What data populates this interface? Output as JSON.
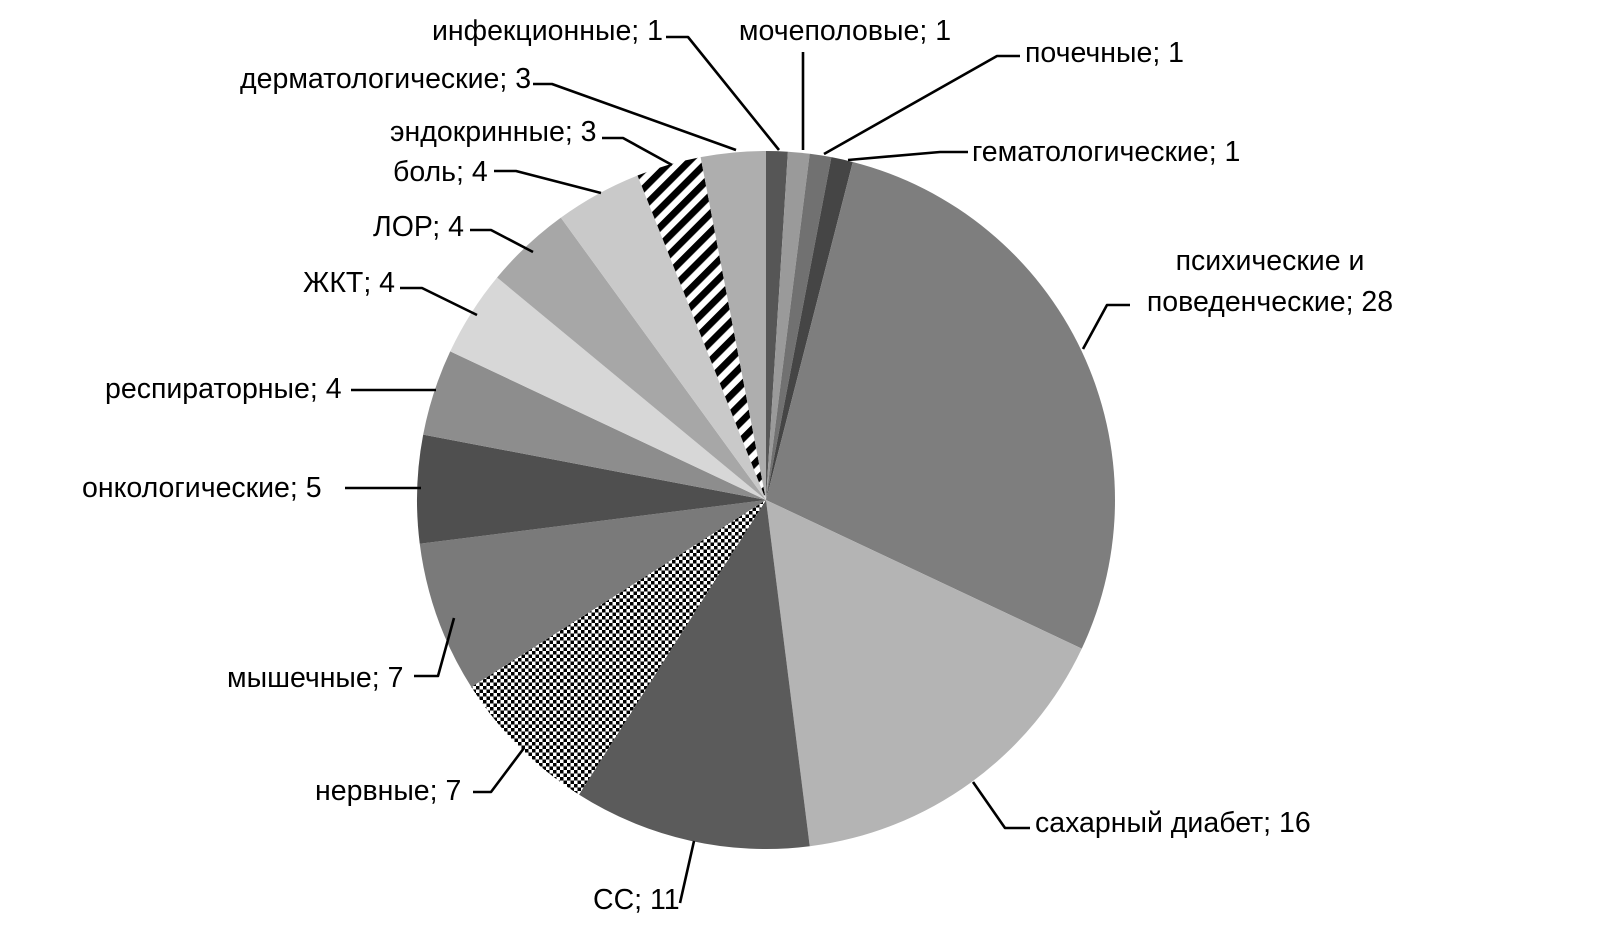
{
  "figure": {
    "background": "#ffffff",
    "title": ""
  },
  "chart_data": {
    "type": "pie",
    "title": "",
    "legend": "none",
    "grid": "off",
    "direction": "clockwise",
    "start_angle_deg": 0,
    "label_format": "name; value",
    "categories": [
      "инфекционные",
      "мочеполовые",
      "почечные",
      "гематологические",
      "психические и поведенческие",
      "сахарный диабет",
      "СС",
      "нервные",
      "мышечные",
      "онкологические",
      "респираторные",
      "ЖКТ",
      "ЛОР",
      "боль",
      "эндокринные",
      "дерматологические"
    ],
    "values": [
      1,
      1,
      1,
      1,
      28,
      16,
      11,
      7,
      7,
      5,
      4,
      4,
      4,
      4,
      3,
      3
    ],
    "values_total": 100,
    "slices": [
      {
        "id": "infectious",
        "name": "инфекционные",
        "value": 1,
        "label": "инфекционные; 1",
        "fill": "#565656"
      },
      {
        "id": "genitourinary",
        "name": "мочеполовые",
        "value": 1,
        "label": "мочеполовые; 1",
        "fill": "#9a9a9a"
      },
      {
        "id": "renal",
        "name": "почечные",
        "value": 1,
        "label": "почечные; 1",
        "fill": "#717171"
      },
      {
        "id": "hematological",
        "name": "гематологические",
        "value": 1,
        "label": "гематологические; 1",
        "fill": "#454545"
      },
      {
        "id": "mental",
        "name": "психические и поведенческие",
        "value": 28,
        "label": [
          "психические и",
          "поведенческие; 28"
        ],
        "fill": "#7e7e7e"
      },
      {
        "id": "diabetes",
        "name": "сахарный диабет",
        "value": 16,
        "label": "сахарный диабет; 16",
        "fill": "#b4b4b4"
      },
      {
        "id": "cardiovascular",
        "name": "СС",
        "value": 11,
        "label": "СС; 11",
        "fill": "#5b5b5b"
      },
      {
        "id": "nervous",
        "name": "нервные",
        "value": 7,
        "label": "нервные; 7",
        "fill": "checkerboard"
      },
      {
        "id": "muscular",
        "name": "мышечные",
        "value": 7,
        "label": "мышечные; 7",
        "fill": "#7a7a7a"
      },
      {
        "id": "oncological",
        "name": "онкологические",
        "value": 5,
        "label": "онкологические; 5",
        "fill": "#4f4f4f"
      },
      {
        "id": "respiratory",
        "name": "респираторные",
        "value": 4,
        "label": "респираторные; 4",
        "fill": "#8d8d8d"
      },
      {
        "id": "gastrointestinal",
        "name": "ЖКТ",
        "value": 4,
        "label": "ЖКТ; 4",
        "fill": "#d7d7d7"
      },
      {
        "id": "ent",
        "name": "ЛОР",
        "value": 4,
        "label": "ЛОР; 4",
        "fill": "#a7a7a7"
      },
      {
        "id": "pain",
        "name": "боль",
        "value": 4,
        "label": "боль; 4",
        "fill": "#c9c9c9"
      },
      {
        "id": "endocrine",
        "name": "эндокринные",
        "value": 3,
        "label": "эндокринные; 3",
        "fill": "diagonal-stripes"
      },
      {
        "id": "dermatological",
        "name": "дерматологические",
        "value": 3,
        "label": "дерматологические; 3",
        "fill": "#aeaeae"
      }
    ],
    "pattern_colors": {
      "pattern_foreground": "#000000",
      "pattern_background": "#ffffff"
    }
  }
}
